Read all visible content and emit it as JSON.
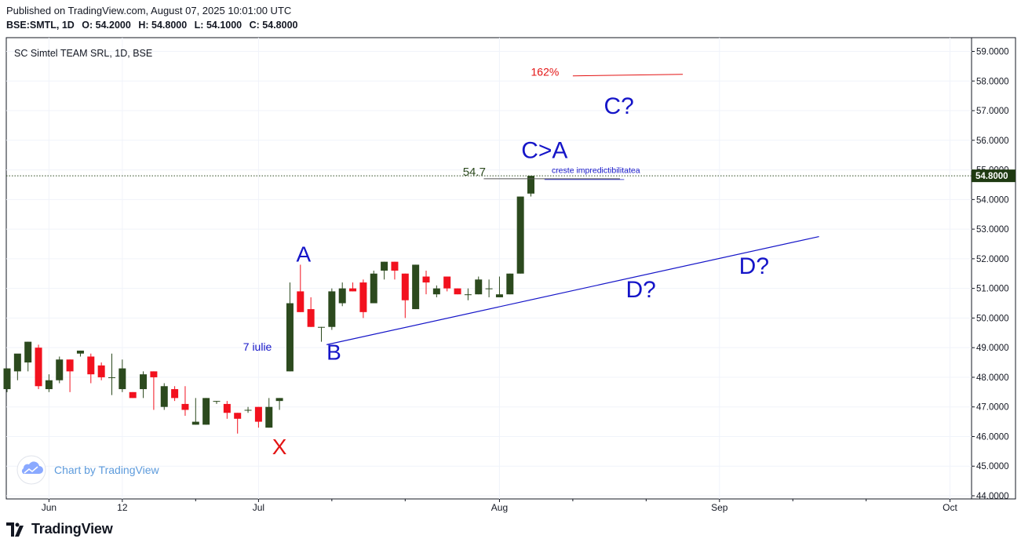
{
  "header": {
    "published": "Published on TradingView.com, August 07, 2025 10:01:00 UTC",
    "symbol_line": "BSE:SMTL, 1D",
    "open": "O: 54.2000",
    "high": "H: 54.8000",
    "low": "L: 54.1000",
    "close": "C: 54.8000"
  },
  "chart_title": "SC Simtel TEAM SRL, 1D, BSE",
  "watermark": "Chart by TradingView",
  "footer_brand": "TradingView",
  "colors": {
    "up": "#2c4a1e",
    "down": "#f2111e",
    "trendline": "#1515c8",
    "wave_label": "#1515c8",
    "x_label": "#e31313",
    "fib": "#e31313",
    "price_tag": "#1f3a12",
    "grid": "#f0f3fa",
    "axis_text": "#131722"
  },
  "chart_data": {
    "type": "candlestick",
    "title": "SC Simtel TEAM SRL, 1D, BSE",
    "ylim": [
      44.0,
      59.3
    ],
    "y_ticks": [
      "59.0000",
      "58.0000",
      "57.0000",
      "56.0000",
      "55.0000",
      "54.0000",
      "53.0000",
      "52.0000",
      "51.0000",
      "50.0000",
      "49.0000",
      "48.0000",
      "47.0000",
      "46.0000",
      "45.0000",
      "44.0000"
    ],
    "x_ticks": [
      "Jun",
      "12",
      "Jul",
      "Aug",
      "Sep",
      "Oct"
    ],
    "last_price": "54.8000",
    "candles": [
      {
        "o": 47.6,
        "h": 48.3,
        "l": 47.5,
        "c": 48.3
      },
      {
        "o": 48.2,
        "h": 48.7,
        "l": 47.9,
        "c": 48.8
      },
      {
        "o": 48.5,
        "h": 49.2,
        "l": 48.2,
        "c": 49.2
      },
      {
        "o": 49.0,
        "h": 49.1,
        "l": 47.6,
        "c": 47.7
      },
      {
        "o": 47.6,
        "h": 48.1,
        "l": 47.5,
        "c": 47.9
      },
      {
        "o": 47.9,
        "h": 48.7,
        "l": 47.8,
        "c": 48.6
      },
      {
        "o": 48.6,
        "h": 48.6,
        "l": 47.5,
        "c": 48.2
      },
      {
        "o": 48.8,
        "h": 48.9,
        "l": 48.7,
        "c": 48.9
      },
      {
        "o": 48.7,
        "h": 48.8,
        "l": 47.8,
        "c": 48.1
      },
      {
        "o": 48.4,
        "h": 48.5,
        "l": 47.9,
        "c": 48.0
      },
      {
        "o": 48.0,
        "h": 48.8,
        "l": 47.4,
        "c": 48.0
      },
      {
        "o": 47.6,
        "h": 48.6,
        "l": 47.5,
        "c": 48.3
      },
      {
        "o": 47.5,
        "h": 47.5,
        "l": 47.3,
        "c": 47.3
      },
      {
        "o": 47.6,
        "h": 48.2,
        "l": 47.3,
        "c": 48.1
      },
      {
        "o": 48.2,
        "h": 48.2,
        "l": 46.9,
        "c": 48.0
      },
      {
        "o": 47.0,
        "h": 47.8,
        "l": 46.9,
        "c": 47.7
      },
      {
        "o": 47.6,
        "h": 47.7,
        "l": 47.2,
        "c": 47.3
      },
      {
        "o": 47.1,
        "h": 47.7,
        "l": 46.7,
        "c": 46.9
      },
      {
        "o": 46.4,
        "h": 47.3,
        "l": 46.4,
        "c": 46.5
      },
      {
        "o": 46.4,
        "h": 47.3,
        "l": 46.4,
        "c": 47.3
      },
      {
        "o": 47.2,
        "h": 47.2,
        "l": 47.1,
        "c": 47.2
      },
      {
        "o": 47.1,
        "h": 47.2,
        "l": 46.6,
        "c": 46.8
      },
      {
        "o": 46.8,
        "h": 46.8,
        "l": 46.1,
        "c": 46.6
      },
      {
        "o": 46.9,
        "h": 47.0,
        "l": 46.8,
        "c": 46.9
      },
      {
        "o": 47.0,
        "h": 47.0,
        "l": 46.3,
        "c": 46.5
      },
      {
        "o": 46.3,
        "h": 47.3,
        "l": 46.3,
        "c": 47.0
      },
      {
        "o": 47.2,
        "h": 47.3,
        "l": 46.9,
        "c": 47.3
      },
      {
        "o": 48.2,
        "h": 51.2,
        "l": 48.2,
        "c": 50.5
      },
      {
        "o": 50.9,
        "h": 51.8,
        "l": 50.2,
        "c": 50.2
      },
      {
        "o": 50.3,
        "h": 50.7,
        "l": 49.7,
        "c": 49.7
      },
      {
        "o": 49.7,
        "h": 49.7,
        "l": 49.2,
        "c": 49.7
      },
      {
        "o": 49.7,
        "h": 51.0,
        "l": 49.6,
        "c": 50.9
      },
      {
        "o": 50.5,
        "h": 51.2,
        "l": 50.4,
        "c": 51.0
      },
      {
        "o": 51.0,
        "h": 51.2,
        "l": 50.9,
        "c": 50.9
      },
      {
        "o": 51.2,
        "h": 51.3,
        "l": 50.0,
        "c": 50.2
      },
      {
        "o": 50.5,
        "h": 51.6,
        "l": 50.5,
        "c": 51.5
      },
      {
        "o": 51.6,
        "h": 51.9,
        "l": 51.3,
        "c": 51.9
      },
      {
        "o": 51.9,
        "h": 51.9,
        "l": 51.3,
        "c": 51.6
      },
      {
        "o": 51.5,
        "h": 51.5,
        "l": 50.0,
        "c": 50.6
      },
      {
        "o": 50.3,
        "h": 51.8,
        "l": 50.3,
        "c": 51.8
      },
      {
        "o": 51.4,
        "h": 51.6,
        "l": 50.8,
        "c": 51.2
      },
      {
        "o": 50.8,
        "h": 51.1,
        "l": 50.7,
        "c": 51.0
      },
      {
        "o": 51.4,
        "h": 51.4,
        "l": 50.9,
        "c": 51.0
      },
      {
        "o": 51.0,
        "h": 51.0,
        "l": 50.8,
        "c": 50.8
      },
      {
        "o": 50.8,
        "h": 51.0,
        "l": 50.6,
        "c": 50.8
      },
      {
        "o": 50.8,
        "h": 51.4,
        "l": 50.8,
        "c": 51.3
      },
      {
        "o": 51.0,
        "h": 51.3,
        "l": 50.7,
        "c": 51.0
      },
      {
        "o": 50.7,
        "h": 51.4,
        "l": 50.7,
        "c": 50.8
      },
      {
        "o": 50.8,
        "h": 51.5,
        "l": 50.8,
        "c": 51.5
      },
      {
        "o": 51.5,
        "h": 54.1,
        "l": 51.5,
        "c": 54.1
      },
      {
        "o": 54.2,
        "h": 54.8,
        "l": 54.1,
        "c": 54.8
      }
    ],
    "trendline": {
      "from": [
        30.5,
        49.1
      ],
      "to": [
        77.5,
        52.75
      ]
    },
    "fib_line": {
      "label": "162%",
      "price_from": 58.2,
      "price_to": 58.2
    },
    "level_54_7": {
      "label": "54.7",
      "price": 54.7
    },
    "annotations": [
      {
        "text": "X",
        "role": "x"
      },
      {
        "text": "A",
        "role": "wave"
      },
      {
        "text": "B",
        "role": "wave"
      },
      {
        "text": "C>A",
        "role": "wave"
      },
      {
        "text": "C?",
        "role": "wave"
      },
      {
        "text": "D?",
        "role": "wave"
      },
      {
        "text": "D?",
        "role": "wave"
      },
      {
        "text": "7 iulie",
        "role": "note"
      },
      {
        "text": "creste impredictibilitatea",
        "role": "note"
      }
    ]
  }
}
